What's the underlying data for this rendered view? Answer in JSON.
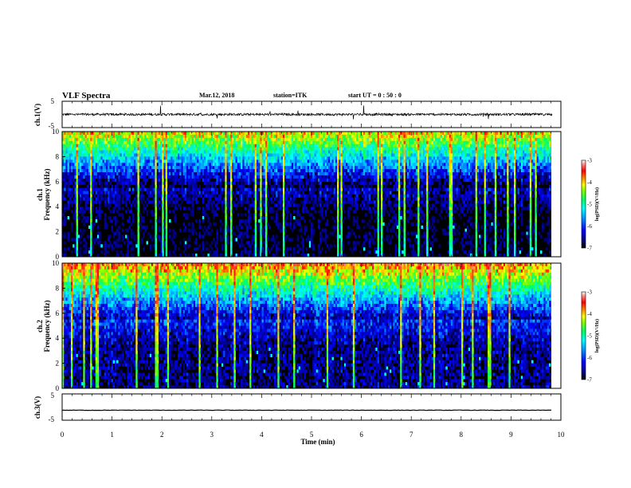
{
  "header": {
    "title": "VLF Spectra",
    "date": "Mar.12, 2018",
    "station": "station=ITK",
    "start": "start  UT =   0 : 50 : 0"
  },
  "colors": {
    "background": "#000000",
    "waveform": "#000000",
    "colormap": [
      "#00007a",
      "#0000ff",
      "#00a0ff",
      "#00ffff",
      "#00ff60",
      "#80ff00",
      "#ffff00",
      "#ff8000",
      "#ff0000",
      "#ff8080",
      "#ffffff"
    ]
  },
  "chart_data": [
    {
      "type": "line",
      "panel": "waveform",
      "ylabel": "ch.1(V)",
      "ylim": [
        -5,
        5
      ],
      "yticks": [
        "5",
        "-5"
      ],
      "x_range_min": [
        0,
        9.83
      ],
      "baseline": 0,
      "description_values": "noisy waveform near 0 V with occasional spikes"
    },
    {
      "type": "heatmap",
      "panel": "spectrogram-ch1",
      "ylabel": "ch.1\nFrequency  (kHz)",
      "ylim": [
        0,
        10
      ],
      "yticks": [
        "0",
        "2",
        "4",
        "6",
        "8",
        "10"
      ],
      "x_range_min": [
        0,
        9.83
      ],
      "colorbar": {
        "label": "log(PSD)(V²/Hz)",
        "range": [
          -7,
          -3
        ],
        "ticks": [
          "-3",
          "-4",
          "-5",
          "-6",
          "-7"
        ]
      }
    },
    {
      "type": "heatmap",
      "panel": "spectrogram-ch2",
      "ylabel": "ch.2\nFrequency  (kHz)",
      "ylim": [
        0,
        10
      ],
      "yticks": [
        "0",
        "2",
        "4",
        "6",
        "8",
        "10"
      ],
      "x_range_min": [
        0,
        9.83
      ],
      "colorbar": {
        "label": "log(PSD)(V²/Hz)",
        "range": [
          -7,
          -3
        ],
        "ticks": [
          "-3",
          "-4",
          "-5",
          "-6",
          "-7"
        ]
      }
    },
    {
      "type": "line",
      "panel": "waveform",
      "ylabel": "ch.3(V)",
      "ylim": [
        -5,
        5
      ],
      "yticks": [
        "5",
        "-5"
      ],
      "x_range_min": [
        0,
        9.83
      ],
      "baseline": -1.2,
      "description_values": "flat line near -1.2 V"
    }
  ],
  "xaxis": {
    "label": "Time  (min)",
    "ticks": [
      "0",
      "1",
      "2",
      "3",
      "4",
      "5",
      "6",
      "7",
      "8",
      "9",
      "10"
    ],
    "xlim": [
      0,
      10
    ]
  }
}
